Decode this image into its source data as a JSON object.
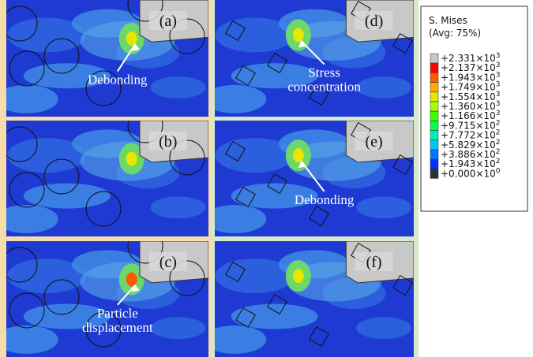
{
  "panels": [
    {
      "label": "(a)",
      "annotation": [
        "Debonding"
      ]
    },
    {
      "label": "(b)"
    },
    {
      "label": "(c)",
      "annotation": [
        "Particle",
        "displacement"
      ]
    },
    {
      "label": "(d)",
      "annotation": [
        "Stress",
        "concentration"
      ]
    },
    {
      "label": "(e)",
      "annotation": [
        "Debonding"
      ]
    },
    {
      "label": "(f)"
    }
  ],
  "legend": {
    "title": "S. Mises",
    "subtitle": "(Avg: 75%)",
    "entries": [
      {
        "label": "+2.331×10",
        "exponent": "3",
        "color": "#c8c8c8"
      },
      {
        "label": "+2.137×10",
        "exponent": "3",
        "color": "#ff0000"
      },
      {
        "label": "+1.943×10",
        "exponent": "3",
        "color": "#ff5a00"
      },
      {
        "label": "+1.749×10",
        "exponent": "3",
        "color": "#ffaa00"
      },
      {
        "label": "+1.554×10",
        "exponent": "3",
        "color": "#e6e600"
      },
      {
        "label": "+1.360×10",
        "exponent": "3",
        "color": "#a0ff00"
      },
      {
        "label": "+1.166×10",
        "exponent": "3",
        "color": "#3cff00"
      },
      {
        "label": "+9.715×10",
        "exponent": "2",
        "color": "#00ff50"
      },
      {
        "label": "+7.772×10",
        "exponent": "2",
        "color": "#00f0b4"
      },
      {
        "label": "+5.829×10",
        "exponent": "2",
        "color": "#00c8f0"
      },
      {
        "label": "+3.886×10",
        "exponent": "2",
        "color": "#0078ff"
      },
      {
        "label": "+1.943×10",
        "exponent": "2",
        "color": "#0032ff"
      },
      {
        "label": "+0.000×10",
        "exponent": "0",
        "color": "#303030"
      }
    ]
  }
}
